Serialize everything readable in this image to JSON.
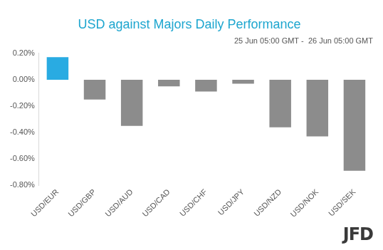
{
  "chart_data": {
    "type": "bar",
    "title": "USD against Majors Daily Performance",
    "subtitle": "25 Jun 05:00 GMT -  26 Jun 05:00 GMT",
    "categories": [
      "USD/EUR",
      "USD/GBP",
      "USD/AUD",
      "USD/CAD",
      "USD/CHF",
      "USD/JPY",
      "USD/NZD",
      "USD/NOK",
      "USD/SEK"
    ],
    "values": [
      0.17,
      -0.15,
      -0.35,
      -0.05,
      -0.09,
      -0.03,
      -0.36,
      -0.43,
      -0.69
    ],
    "colors": [
      "#29abe2",
      "#8c8c8c",
      "#8c8c8c",
      "#8c8c8c",
      "#8c8c8c",
      "#8c8c8c",
      "#8c8c8c",
      "#8c8c8c",
      "#8c8c8c"
    ],
    "ylim": [
      -0.8,
      0.2
    ],
    "yticks": [
      {
        "value": 0.2,
        "label": "0.20%"
      },
      {
        "value": 0,
        "label": "0.00%"
      },
      {
        "value": -0.2,
        "label": "-0.20%"
      },
      {
        "value": -0.4,
        "label": "-0.40%"
      },
      {
        "value": -0.6,
        "label": "-0.60%"
      },
      {
        "value": -0.8,
        "label": "-0.80%"
      }
    ],
    "grid": false
  },
  "logo": "JFD"
}
